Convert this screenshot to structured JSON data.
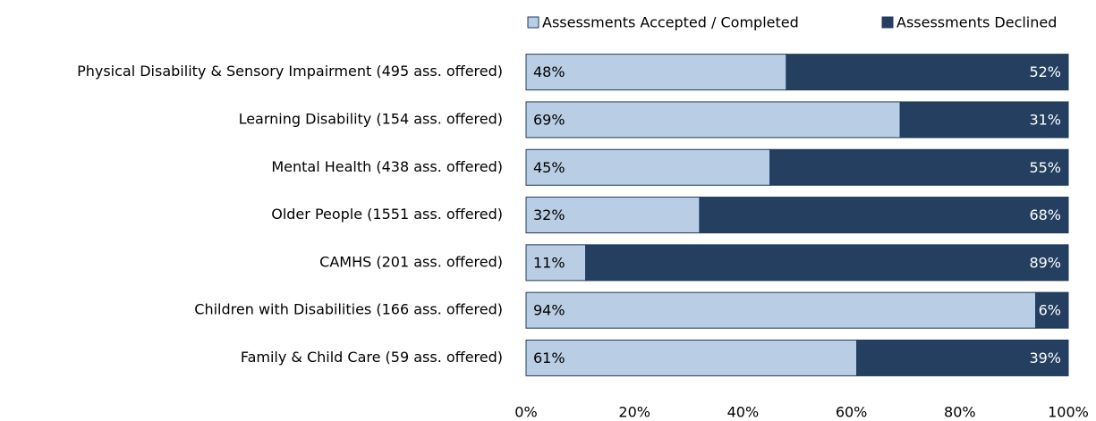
{
  "chart_data": {
    "type": "stacked-bar-horizontal",
    "categories": [
      "Physical Disability  & Sensory Impairment  (495 ass. offered)",
      "Learning Disability  (154 ass. offered)",
      "Mental Health  (438 ass. offered)",
      "Older People (1551 ass. offered)",
      "CAMHS (201 ass. offered)",
      "Children with  Disabilities (166 ass. offered)",
      "Family & Child Care (59 ass. offered)"
    ],
    "series": [
      {
        "name": "Assessments Accepted / Completed",
        "color": "#b9cde5",
        "values": [
          48,
          69,
          45,
          32,
          11,
          94,
          61
        ],
        "value_labels": [
          "48%",
          "69%",
          "45%",
          "32%",
          "11%",
          "94%",
          "61%"
        ]
      },
      {
        "name": "Assessments Declined",
        "color": "#243f60",
        "values": [
          52,
          31,
          55,
          68,
          89,
          6,
          39
        ],
        "value_labels": [
          "52%",
          "31%",
          "55%",
          "68%",
          "89%",
          "6%",
          "39%"
        ]
      }
    ],
    "xlim": [
      0,
      100
    ],
    "xticks": [
      {
        "value": 0,
        "label": "0%"
      },
      {
        "value": 20,
        "label": "20%"
      },
      {
        "value": 40,
        "label": "40%"
      },
      {
        "value": 60,
        "label": "60%"
      },
      {
        "value": 80,
        "label": "80%"
      },
      {
        "value": 100,
        "label": "100%"
      }
    ],
    "legend": "top"
  }
}
